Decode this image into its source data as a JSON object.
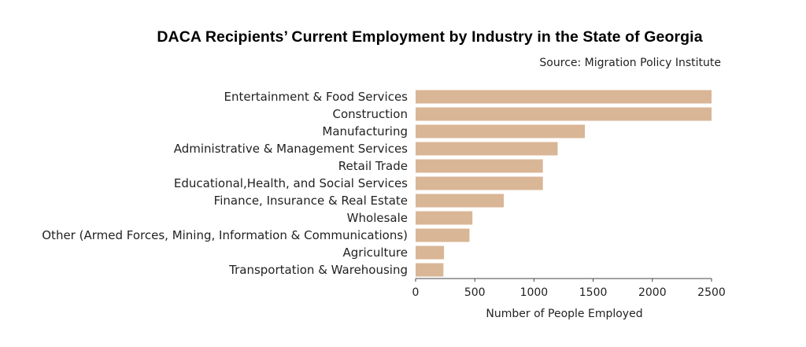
{
  "chart_data": {
    "type": "bar",
    "orientation": "horizontal",
    "title": "DACA Recipients’ Current Employment by Industry in the State of Georgia",
    "subtitle": "Source: Migration Policy Institute",
    "xlabel": "Number of People Employed",
    "ylabel": "",
    "categories": [
      "Entertainment & Food Services",
      "Construction",
      "Manufacturing",
      "Administrative & Management Services",
      "Retail Trade",
      "Educational,Health, and Social Services",
      "Finance, Insurance & Real Estate",
      "Wholesale",
      "Other (Armed Forces, Mining, Information & Communications)",
      "Agriculture",
      "Transportation & Warehousing"
    ],
    "values": [
      2500,
      2500,
      1430,
      1200,
      1075,
      1075,
      745,
      480,
      455,
      240,
      235
    ],
    "xlim": [
      0,
      2500
    ],
    "xticks": [
      0,
      500,
      1000,
      1500,
      2000,
      2500
    ],
    "grid": false,
    "legend": "none",
    "colors": {
      "bar": "#d9b696",
      "axis": "#444444",
      "text": "#222222"
    }
  }
}
